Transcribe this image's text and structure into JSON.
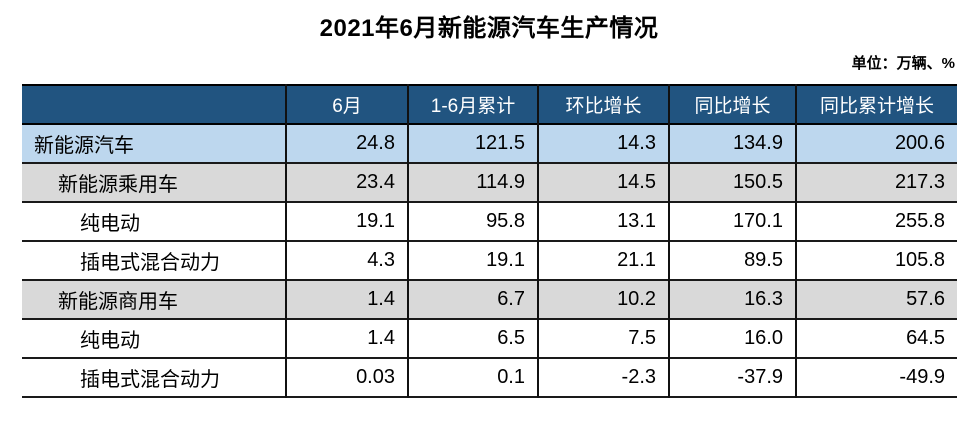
{
  "title": "2021年6月新能源汽车生产情况",
  "unit_label": "单位：万辆、%",
  "colors": {
    "header_bg": "#215480",
    "header_text": "#FFFFFF",
    "row_highlight_blue": "#BDD7EE",
    "row_highlight_gray": "#D9D9D9",
    "row_plain": "#FFFFFF",
    "border": "#111111",
    "title_text": "#000000"
  },
  "chart_data": {
    "type": "table",
    "title": "2021年6月新能源汽车生产情况",
    "unit": "单位：万辆、%",
    "columns": [
      "",
      "6月",
      "1-6月累计",
      "环比增长",
      "同比增长",
      "同比累计增长"
    ],
    "rows": [
      {
        "label": "新能源汽车",
        "indent": 0,
        "values": [
          "24.8",
          "121.5",
          "14.3",
          "134.9",
          "200.6"
        ]
      },
      {
        "label": "新能源乘用车",
        "indent": 1,
        "values": [
          "23.4",
          "114.9",
          "14.5",
          "150.5",
          "217.3"
        ]
      },
      {
        "label": "纯电动",
        "indent": 2,
        "values": [
          "19.1",
          "95.8",
          "13.1",
          "170.1",
          "255.8"
        ]
      },
      {
        "label": "插电式混合动力",
        "indent": 2,
        "values": [
          "4.3",
          "19.1",
          "21.1",
          "89.5",
          "105.8"
        ]
      },
      {
        "label": "新能源商用车",
        "indent": 1,
        "values": [
          "1.4",
          "6.7",
          "10.2",
          "16.3",
          "57.6"
        ]
      },
      {
        "label": "纯电动",
        "indent": 2,
        "values": [
          "1.4",
          "6.5",
          "7.5",
          "16.0",
          "64.5"
        ]
      },
      {
        "label": "插电式混合动力",
        "indent": 2,
        "values": [
          "0.03",
          "0.1",
          "-2.3",
          "-37.9",
          "-49.9"
        ]
      }
    ]
  }
}
